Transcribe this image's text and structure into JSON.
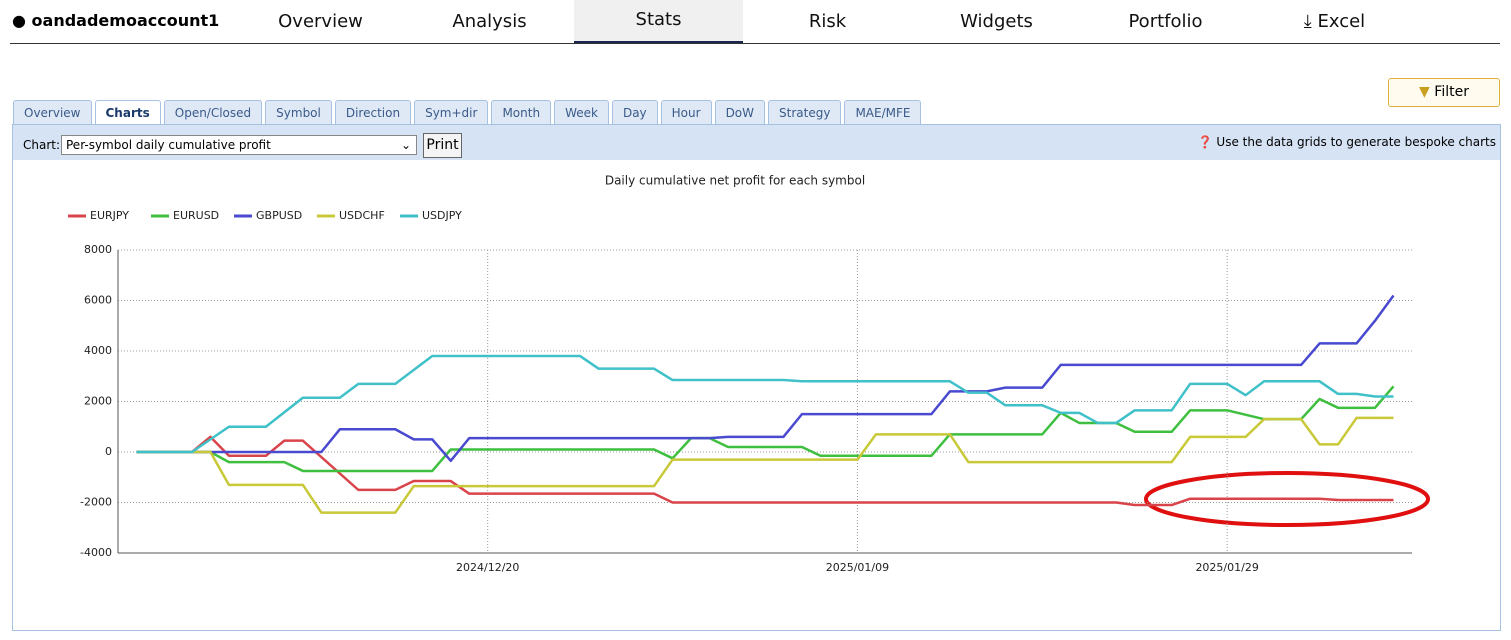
{
  "header": {
    "user": "oandademoaccount1",
    "nav": [
      "Overview",
      "Analysis",
      "Stats",
      "Risk",
      "Widgets",
      "Portfolio",
      "Excel"
    ],
    "active": 2
  },
  "filter": "Filter",
  "tabs": {
    "items": [
      "Overview",
      "Charts",
      "Open/Closed",
      "Symbol",
      "Direction",
      "Sym+dir",
      "Month",
      "Week",
      "Day",
      "Hour",
      "DoW",
      "Strategy",
      "MAE/MFE"
    ],
    "active": 1
  },
  "toolbar": {
    "label": "Chart:",
    "select": "Per-symbol daily cumulative profit",
    "button": "Print",
    "hint": "Use the data grids to generate bespoke charts"
  },
  "chart_data": {
    "type": "line",
    "title": "Daily cumulative net profit for each symbol",
    "xlim": [
      "2024/11/30",
      "2025/02/08"
    ],
    "xticks": [
      "2024/12/20",
      "2025/01/09",
      "2025/01/29"
    ],
    "ylim": [
      -4000,
      8000
    ],
    "yticks": [
      -4000,
      -2000,
      0,
      2000,
      4000,
      6000,
      8000
    ],
    "grid": true,
    "legend": "top-left",
    "series": [
      {
        "name": "EURJPY",
        "color": "#d9434a",
        "x": [
          "2024/12/01",
          "2024/12/04",
          "2024/12/05",
          "2024/12/06",
          "2024/12/08",
          "2024/12/09",
          "2024/12/10",
          "2024/12/13",
          "2024/12/15",
          "2024/12/16",
          "2024/12/18",
          "2024/12/19",
          "2024/12/29",
          "2024/12/30",
          "2025/01/23",
          "2025/01/24",
          "2025/01/26",
          "2025/01/27",
          "2025/02/03",
          "2025/02/04",
          "2025/02/07"
        ],
        "values": [
          0,
          0,
          600,
          -150,
          -150,
          450,
          450,
          -1500,
          -1500,
          -1150,
          -1150,
          -1650,
          -1650,
          -2000,
          -2000,
          -2100,
          -2100,
          -1850,
          -1850,
          -1900,
          -1900
        ]
      },
      {
        "name": "EURUSD",
        "color": "#3fbf3f",
        "x": [
          "2024/12/01",
          "2024/12/05",
          "2024/12/06",
          "2024/12/09",
          "2024/12/10",
          "2024/12/17",
          "2024/12/18",
          "2024/12/29",
          "2024/12/30",
          "2024/12/31",
          "2025/01/01",
          "2025/01/02",
          "2025/01/06",
          "2025/01/07",
          "2025/01/13",
          "2025/01/14",
          "2025/01/19",
          "2025/01/20",
          "2025/01/21",
          "2025/01/23",
          "2025/01/24",
          "2025/01/26",
          "2025/01/27",
          "2025/01/29",
          "2025/01/31",
          "2025/02/02",
          "2025/02/03",
          "2025/02/04",
          "2025/02/06",
          "2025/02/07"
        ],
        "values": [
          0,
          0,
          -400,
          -400,
          -750,
          -750,
          100,
          100,
          -250,
          550,
          550,
          200,
          200,
          -150,
          -150,
          700,
          700,
          1550,
          1150,
          1150,
          800,
          800,
          1650,
          1650,
          1300,
          1300,
          2100,
          1750,
          1750,
          2600
        ]
      },
      {
        "name": "GBPUSD",
        "color": "#4a4ad0",
        "x": [
          "2024/12/01",
          "2024/12/11",
          "2024/12/12",
          "2024/12/15",
          "2024/12/16",
          "2024/12/17",
          "2024/12/18",
          "2024/12/19",
          "2025/01/01",
          "2025/01/02",
          "2025/01/05",
          "2025/01/06",
          "2025/01/13",
          "2025/01/14",
          "2025/01/16",
          "2025/01/17",
          "2025/01/19",
          "2025/01/20",
          "2025/02/02",
          "2025/02/03",
          "2025/02/05",
          "2025/02/06",
          "2025/02/07"
        ],
        "values": [
          0,
          0,
          900,
          900,
          500,
          500,
          -350,
          550,
          550,
          600,
          600,
          1500,
          1500,
          2400,
          2400,
          2550,
          2550,
          3450,
          3450,
          4300,
          4300,
          5200,
          6200
        ]
      },
      {
        "name": "USDCHF",
        "color": "#c8c838",
        "x": [
          "2024/12/01",
          "2024/12/05",
          "2024/12/06",
          "2024/12/10",
          "2024/12/11",
          "2024/12/15",
          "2024/12/16",
          "2024/12/29",
          "2024/12/30",
          "2025/01/09",
          "2025/01/10",
          "2025/01/14",
          "2025/01/15",
          "2025/01/26",
          "2025/01/27",
          "2025/01/30",
          "2025/01/31",
          "2025/02/02",
          "2025/02/03",
          "2025/02/04",
          "2025/02/05",
          "2025/02/07"
        ],
        "values": [
          0,
          0,
          -1300,
          -1300,
          -2400,
          -2400,
          -1350,
          -1350,
          -300,
          -300,
          700,
          700,
          -400,
          -400,
          600,
          600,
          1300,
          1300,
          300,
          300,
          1350,
          1350
        ]
      },
      {
        "name": "USDJPY",
        "color": "#40c0c8",
        "x": [
          "2024/12/01",
          "2024/12/04",
          "2024/12/06",
          "2024/12/08",
          "2024/12/10",
          "2024/12/12",
          "2024/12/13",
          "2024/12/15",
          "2024/12/17",
          "2024/12/25",
          "2024/12/26",
          "2024/12/29",
          "2024/12/30",
          "2025/01/05",
          "2025/01/06",
          "2025/01/14",
          "2025/01/15",
          "2025/01/16",
          "2025/01/17",
          "2025/01/19",
          "2025/01/20",
          "2025/01/21",
          "2025/01/22",
          "2025/01/23",
          "2025/01/24",
          "2025/01/26",
          "2025/01/27",
          "2025/01/29",
          "2025/01/30",
          "2025/01/31",
          "2025/02/03",
          "2025/02/04",
          "2025/02/05",
          "2025/02/06",
          "2025/02/07"
        ],
        "values": [
          0,
          0,
          1000,
          1000,
          2150,
          2150,
          2700,
          2700,
          3800,
          3800,
          3300,
          3300,
          2850,
          2850,
          2800,
          2800,
          2350,
          2350,
          1850,
          1850,
          1550,
          1550,
          1150,
          1150,
          1650,
          1650,
          2700,
          2700,
          2250,
          2800,
          2800,
          2300,
          2300,
          2200,
          2200
        ]
      }
    ]
  }
}
